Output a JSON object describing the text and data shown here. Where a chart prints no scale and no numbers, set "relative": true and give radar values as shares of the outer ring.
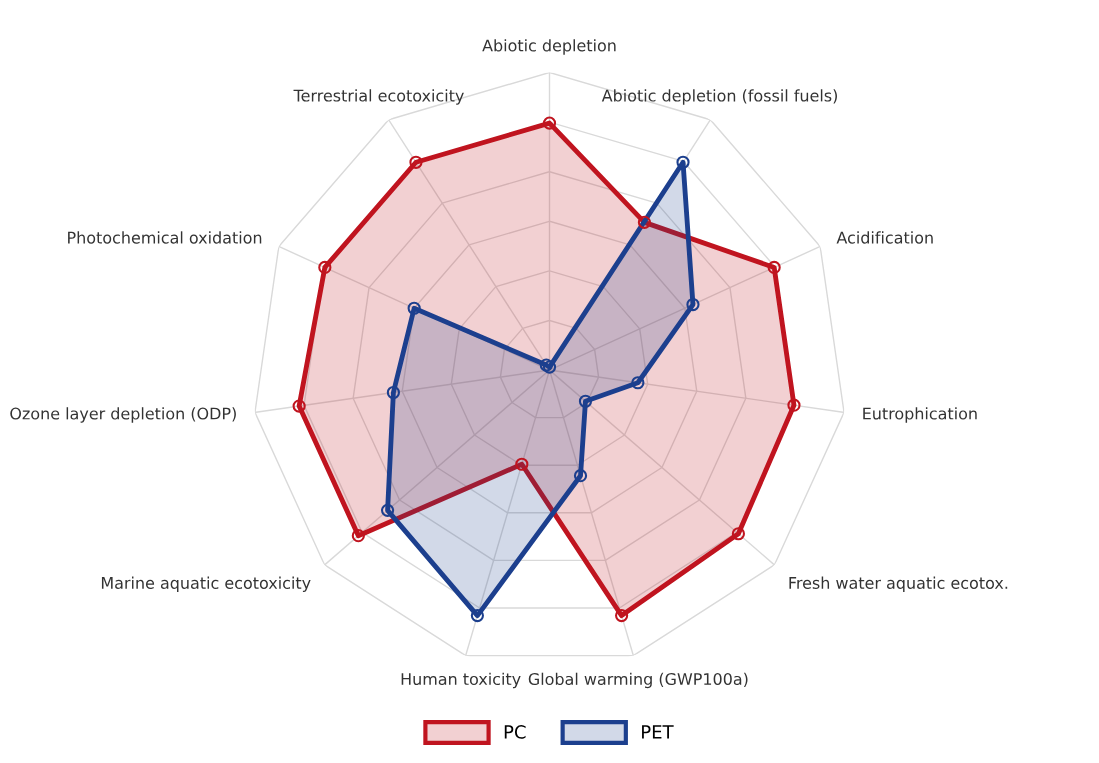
{
  "chart_data": {
    "type": "radar",
    "relative": true,
    "grid": true,
    "legend": "bottom",
    "marker": "circle",
    "line_style": "solid",
    "categories": [
      "Abiotic depletion",
      "Abiotic depletion (fossil fuels)",
      "Acidification",
      "Eutrophication",
      "Fresh water aquatic ecotox.",
      "Global warming (GWP100a)",
      "Human toxicity",
      "Marine aquatic ecotoxicity",
      "Ozone layer depletion (ODP)",
      "Photochemical oxidation",
      "Terrestrial ecotoxicity"
    ],
    "series": [
      {
        "name": "PC",
        "color": "#c0141f",
        "values": [
          0.83,
          0.59,
          0.83,
          0.83,
          0.84,
          0.86,
          0.33,
          0.85,
          0.85,
          0.83,
          0.83
        ]
      },
      {
        "name": "PET",
        "color": "#1c3f8e",
        "values": [
          0.01,
          0.83,
          0.53,
          0.3,
          0.16,
          0.37,
          0.86,
          0.72,
          0.53,
          0.5,
          0.02
        ]
      }
    ]
  }
}
